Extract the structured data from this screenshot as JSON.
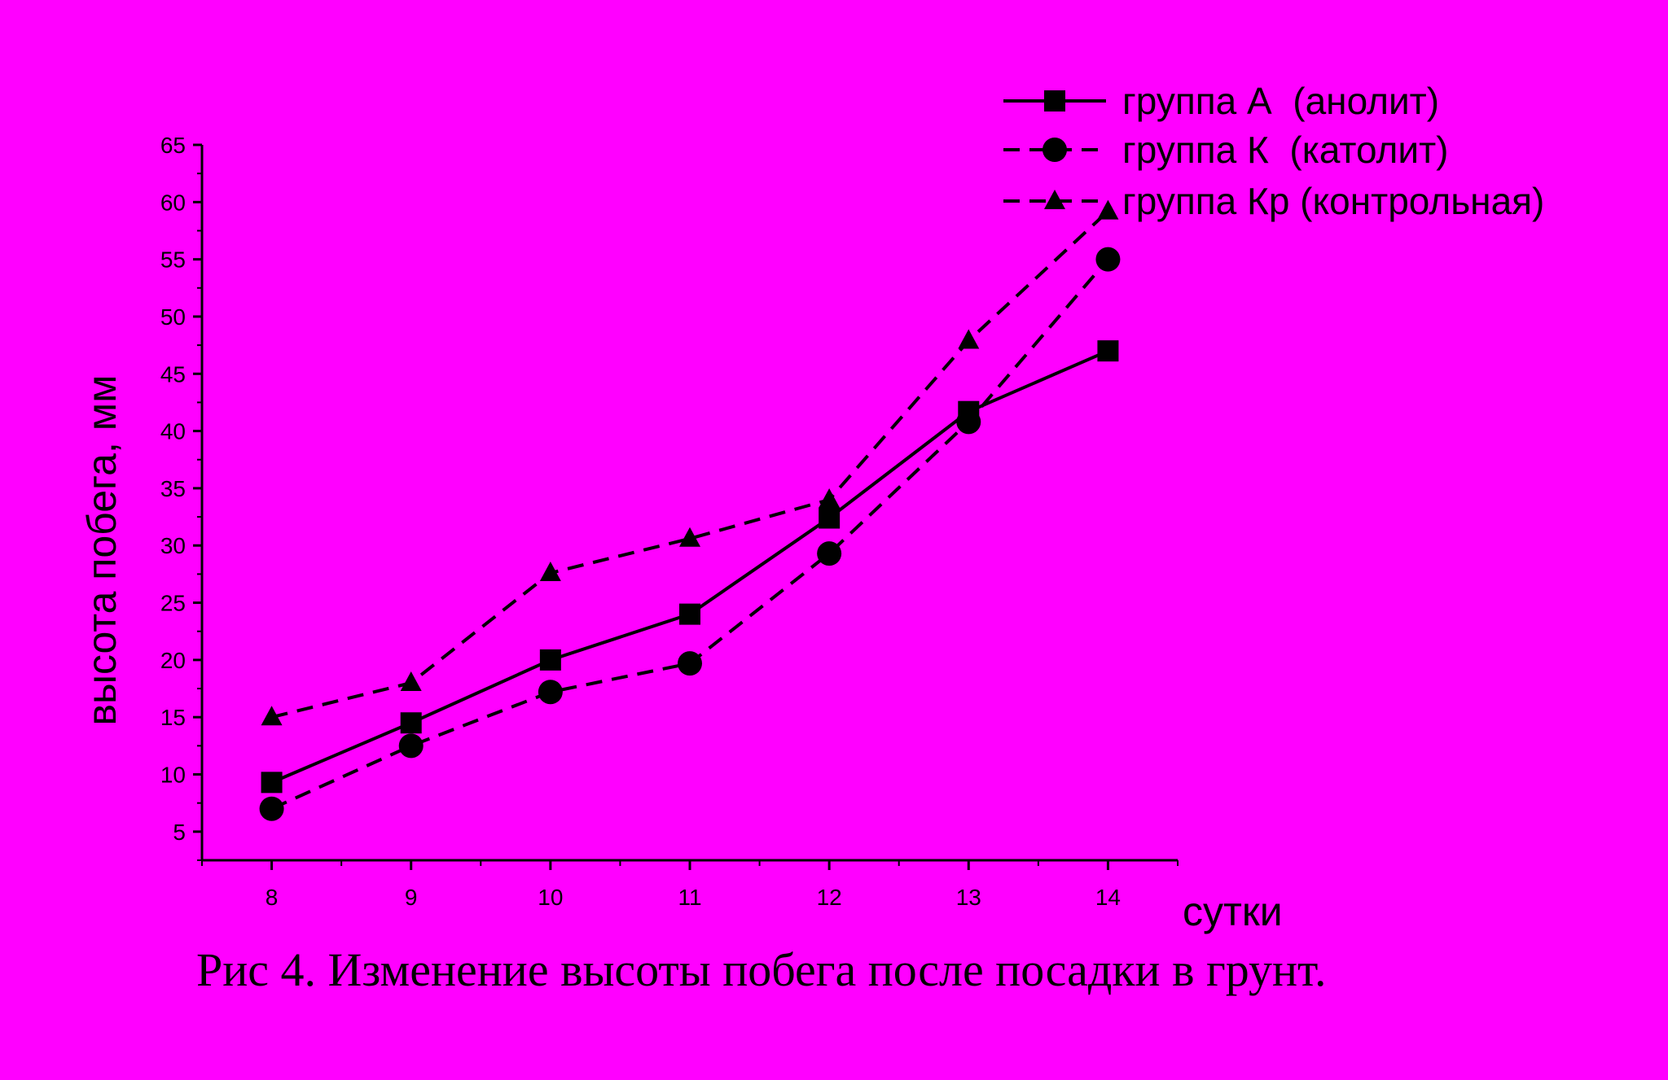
{
  "caption": "Рис 4. Изменение высоты побега после посадки в грунт.",
  "colors": {
    "background": "#ff00ff",
    "ink": "#000000"
  },
  "chart_data": {
    "type": "line",
    "xlabel": "сутки",
    "ylabel": "высота побега, мм",
    "x": [
      8,
      9,
      10,
      11,
      12,
      13,
      14
    ],
    "xlim": [
      7.5,
      14.5
    ],
    "ylim": [
      2.5,
      65
    ],
    "yticks": [
      5,
      10,
      15,
      20,
      25,
      30,
      35,
      40,
      45,
      50,
      55,
      60,
      65
    ],
    "xticks": [
      8,
      9,
      10,
      11,
      12,
      13,
      14
    ],
    "grid": false,
    "legend_position": "top-right",
    "series": [
      {
        "name": "группа А  (анолит)",
        "marker": "square",
        "line_style": "solid",
        "values": [
          9.3,
          14.5,
          20.0,
          24.0,
          32.4,
          41.7,
          47.0
        ]
      },
      {
        "name": "группа К  (католит)",
        "marker": "circle",
        "line_style": "dashed",
        "values": [
          7.0,
          12.5,
          17.2,
          19.7,
          29.3,
          40.8,
          55.0
        ]
      },
      {
        "name": "группа Кр (контрольная)",
        "marker": "triangle",
        "line_style": "dashed",
        "values": [
          15.0,
          18.0,
          27.6,
          30.6,
          34.0,
          47.9,
          59.2
        ]
      }
    ]
  }
}
